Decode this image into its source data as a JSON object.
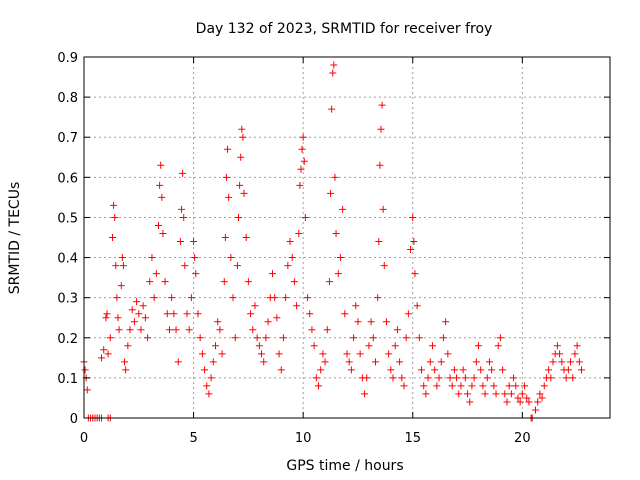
{
  "chart_data": {
    "type": "scatter",
    "title": "Day 132 of 2023, SRMTID for receiver froy",
    "xlabel": "GPS time / hours",
    "ylabel": "SRMTID / TECUs",
    "xlim": [
      0,
      24
    ],
    "ylim": [
      0,
      0.9
    ],
    "xticks": [
      "0",
      "5",
      "10",
      "15",
      "20"
    ],
    "yticks": [
      "0",
      "0.1",
      "0.2",
      "0.3",
      "0.4",
      "0.5",
      "0.6",
      "0.7",
      "0.8",
      "0.9"
    ],
    "grid": true,
    "marker": "+",
    "color": "#ff0000",
    "series": [
      {
        "name": "SRMTID",
        "points": [
          [
            0.0,
            0.14
          ],
          [
            0.05,
            0.12
          ],
          [
            0.1,
            0.1
          ],
          [
            0.15,
            0.07
          ],
          [
            0.2,
            0.0
          ],
          [
            0.3,
            0.0
          ],
          [
            0.4,
            0.0
          ],
          [
            0.5,
            0.0
          ],
          [
            0.6,
            0.0
          ],
          [
            0.7,
            0.0
          ],
          [
            0.8,
            0.0
          ],
          [
            1.1,
            0.0
          ],
          [
            1.2,
            0.0
          ],
          [
            0.8,
            0.15
          ],
          [
            0.9,
            0.17
          ],
          [
            1.0,
            0.25
          ],
          [
            1.05,
            0.26
          ],
          [
            1.1,
            0.16
          ],
          [
            1.2,
            0.2
          ],
          [
            1.3,
            0.45
          ],
          [
            1.35,
            0.53
          ],
          [
            1.4,
            0.5
          ],
          [
            1.45,
            0.38
          ],
          [
            1.5,
            0.3
          ],
          [
            1.55,
            0.25
          ],
          [
            1.6,
            0.22
          ],
          [
            1.7,
            0.33
          ],
          [
            1.75,
            0.4
          ],
          [
            1.8,
            0.38
          ],
          [
            1.85,
            0.14
          ],
          [
            1.9,
            0.12
          ],
          [
            2.0,
            0.18
          ],
          [
            2.1,
            0.22
          ],
          [
            2.2,
            0.27
          ],
          [
            2.3,
            0.24
          ],
          [
            2.4,
            0.29
          ],
          [
            2.5,
            0.26
          ],
          [
            2.6,
            0.22
          ],
          [
            2.7,
            0.28
          ],
          [
            2.8,
            0.25
          ],
          [
            2.9,
            0.2
          ],
          [
            3.0,
            0.34
          ],
          [
            3.1,
            0.4
          ],
          [
            3.2,
            0.3
          ],
          [
            3.3,
            0.36
          ],
          [
            3.4,
            0.48
          ],
          [
            3.45,
            0.58
          ],
          [
            3.5,
            0.63
          ],
          [
            3.55,
            0.55
          ],
          [
            3.6,
            0.46
          ],
          [
            3.7,
            0.34
          ],
          [
            3.8,
            0.26
          ],
          [
            3.9,
            0.22
          ],
          [
            4.0,
            0.3
          ],
          [
            4.1,
            0.26
          ],
          [
            4.2,
            0.22
          ],
          [
            4.3,
            0.14
          ],
          [
            4.4,
            0.44
          ],
          [
            4.45,
            0.52
          ],
          [
            4.5,
            0.61
          ],
          [
            4.55,
            0.5
          ],
          [
            4.6,
            0.38
          ],
          [
            4.7,
            0.26
          ],
          [
            4.8,
            0.22
          ],
          [
            4.9,
            0.3
          ],
          [
            5.0,
            0.44
          ],
          [
            5.05,
            0.4
          ],
          [
            5.1,
            0.36
          ],
          [
            5.2,
            0.26
          ],
          [
            5.3,
            0.2
          ],
          [
            5.4,
            0.16
          ],
          [
            5.5,
            0.12
          ],
          [
            5.6,
            0.08
          ],
          [
            5.7,
            0.06
          ],
          [
            5.8,
            0.1
          ],
          [
            5.9,
            0.14
          ],
          [
            6.0,
            0.18
          ],
          [
            6.1,
            0.24
          ],
          [
            6.2,
            0.22
          ],
          [
            6.3,
            0.16
          ],
          [
            6.4,
            0.34
          ],
          [
            6.45,
            0.45
          ],
          [
            6.5,
            0.6
          ],
          [
            6.55,
            0.67
          ],
          [
            6.6,
            0.55
          ],
          [
            6.7,
            0.4
          ],
          [
            6.8,
            0.3
          ],
          [
            6.9,
            0.2
          ],
          [
            7.0,
            0.38
          ],
          [
            7.05,
            0.5
          ],
          [
            7.1,
            0.58
          ],
          [
            7.15,
            0.65
          ],
          [
            7.2,
            0.72
          ],
          [
            7.25,
            0.7
          ],
          [
            7.3,
            0.56
          ],
          [
            7.4,
            0.45
          ],
          [
            7.5,
            0.34
          ],
          [
            7.6,
            0.26
          ],
          [
            7.7,
            0.22
          ],
          [
            7.8,
            0.28
          ],
          [
            7.9,
            0.2
          ],
          [
            8.0,
            0.18
          ],
          [
            8.1,
            0.16
          ],
          [
            8.2,
            0.14
          ],
          [
            8.3,
            0.2
          ],
          [
            8.4,
            0.24
          ],
          [
            8.5,
            0.3
          ],
          [
            8.6,
            0.36
          ],
          [
            8.7,
            0.3
          ],
          [
            8.8,
            0.25
          ],
          [
            8.9,
            0.16
          ],
          [
            9.0,
            0.12
          ],
          [
            9.1,
            0.2
          ],
          [
            9.2,
            0.3
          ],
          [
            9.3,
            0.38
          ],
          [
            9.4,
            0.44
          ],
          [
            9.5,
            0.4
          ],
          [
            9.6,
            0.34
          ],
          [
            9.7,
            0.28
          ],
          [
            9.8,
            0.46
          ],
          [
            9.85,
            0.58
          ],
          [
            9.9,
            0.62
          ],
          [
            9.95,
            0.67
          ],
          [
            10.0,
            0.7
          ],
          [
            10.05,
            0.64
          ],
          [
            10.1,
            0.5
          ],
          [
            10.2,
            0.3
          ],
          [
            10.3,
            0.26
          ],
          [
            10.4,
            0.22
          ],
          [
            10.5,
            0.18
          ],
          [
            10.6,
            0.1
          ],
          [
            10.7,
            0.08
          ],
          [
            10.8,
            0.12
          ],
          [
            10.9,
            0.16
          ],
          [
            11.0,
            0.14
          ],
          [
            11.1,
            0.22
          ],
          [
            11.2,
            0.34
          ],
          [
            11.25,
            0.56
          ],
          [
            11.3,
            0.77
          ],
          [
            11.35,
            0.86
          ],
          [
            11.4,
            0.88
          ],
          [
            11.45,
            0.6
          ],
          [
            11.5,
            0.46
          ],
          [
            11.6,
            0.36
          ],
          [
            11.7,
            0.4
          ],
          [
            11.8,
            0.52
          ],
          [
            11.9,
            0.26
          ],
          [
            12.0,
            0.16
          ],
          [
            12.1,
            0.14
          ],
          [
            12.2,
            0.12
          ],
          [
            12.3,
            0.2
          ],
          [
            12.4,
            0.28
          ],
          [
            12.5,
            0.24
          ],
          [
            12.6,
            0.16
          ],
          [
            12.7,
            0.1
          ],
          [
            12.8,
            0.06
          ],
          [
            12.9,
            0.1
          ],
          [
            13.0,
            0.18
          ],
          [
            13.1,
            0.24
          ],
          [
            13.2,
            0.2
          ],
          [
            13.3,
            0.14
          ],
          [
            13.4,
            0.3
          ],
          [
            13.45,
            0.44
          ],
          [
            13.5,
            0.63
          ],
          [
            13.55,
            0.72
          ],
          [
            13.6,
            0.78
          ],
          [
            13.65,
            0.52
          ],
          [
            13.7,
            0.38
          ],
          [
            13.8,
            0.24
          ],
          [
            13.9,
            0.16
          ],
          [
            14.0,
            0.12
          ],
          [
            14.1,
            0.1
          ],
          [
            14.2,
            0.18
          ],
          [
            14.3,
            0.22
          ],
          [
            14.4,
            0.14
          ],
          [
            14.5,
            0.1
          ],
          [
            14.6,
            0.08
          ],
          [
            14.7,
            0.2
          ],
          [
            14.8,
            0.26
          ],
          [
            14.9,
            0.42
          ],
          [
            15.0,
            0.5
          ],
          [
            15.05,
            0.44
          ],
          [
            15.1,
            0.36
          ],
          [
            15.2,
            0.28
          ],
          [
            15.3,
            0.2
          ],
          [
            15.4,
            0.12
          ],
          [
            15.5,
            0.08
          ],
          [
            15.6,
            0.06
          ],
          [
            15.7,
            0.1
          ],
          [
            15.8,
            0.14
          ],
          [
            15.9,
            0.18
          ],
          [
            16.0,
            0.12
          ],
          [
            16.1,
            0.08
          ],
          [
            16.2,
            0.1
          ],
          [
            16.3,
            0.14
          ],
          [
            16.4,
            0.2
          ],
          [
            16.5,
            0.24
          ],
          [
            16.6,
            0.16
          ],
          [
            16.7,
            0.1
          ],
          [
            16.8,
            0.08
          ],
          [
            16.9,
            0.12
          ],
          [
            17.0,
            0.1
          ],
          [
            17.1,
            0.06
          ],
          [
            17.2,
            0.08
          ],
          [
            17.3,
            0.12
          ],
          [
            17.4,
            0.1
          ],
          [
            17.5,
            0.06
          ],
          [
            17.6,
            0.04
          ],
          [
            17.7,
            0.08
          ],
          [
            17.8,
            0.1
          ],
          [
            17.9,
            0.14
          ],
          [
            18.0,
            0.18
          ],
          [
            18.1,
            0.12
          ],
          [
            18.2,
            0.08
          ],
          [
            18.3,
            0.06
          ],
          [
            18.4,
            0.1
          ],
          [
            18.5,
            0.14
          ],
          [
            18.6,
            0.12
          ],
          [
            18.7,
            0.08
          ],
          [
            18.8,
            0.06
          ],
          [
            18.9,
            0.18
          ],
          [
            19.0,
            0.2
          ],
          [
            19.1,
            0.12
          ],
          [
            19.2,
            0.06
          ],
          [
            19.3,
            0.04
          ],
          [
            19.4,
            0.08
          ],
          [
            19.5,
            0.06
          ],
          [
            19.6,
            0.1
          ],
          [
            19.7,
            0.08
          ],
          [
            19.8,
            0.05
          ],
          [
            19.9,
            0.04
          ],
          [
            20.0,
            0.06
          ],
          [
            20.1,
            0.08
          ],
          [
            20.2,
            0.05
          ],
          [
            20.3,
            0.04
          ],
          [
            20.4,
            0.0
          ],
          [
            20.45,
            0.0
          ],
          [
            20.6,
            0.02
          ],
          [
            20.7,
            0.04
          ],
          [
            20.8,
            0.06
          ],
          [
            20.9,
            0.05
          ],
          [
            21.0,
            0.08
          ],
          [
            21.1,
            0.1
          ],
          [
            21.2,
            0.12
          ],
          [
            21.3,
            0.1
          ],
          [
            21.4,
            0.14
          ],
          [
            21.5,
            0.16
          ],
          [
            21.6,
            0.18
          ],
          [
            21.7,
            0.16
          ],
          [
            21.8,
            0.14
          ],
          [
            21.9,
            0.12
          ],
          [
            22.0,
            0.1
          ],
          [
            22.1,
            0.12
          ],
          [
            22.2,
            0.14
          ],
          [
            22.3,
            0.1
          ],
          [
            22.4,
            0.16
          ],
          [
            22.5,
            0.18
          ],
          [
            22.6,
            0.14
          ],
          [
            22.7,
            0.12
          ]
        ]
      }
    ]
  }
}
